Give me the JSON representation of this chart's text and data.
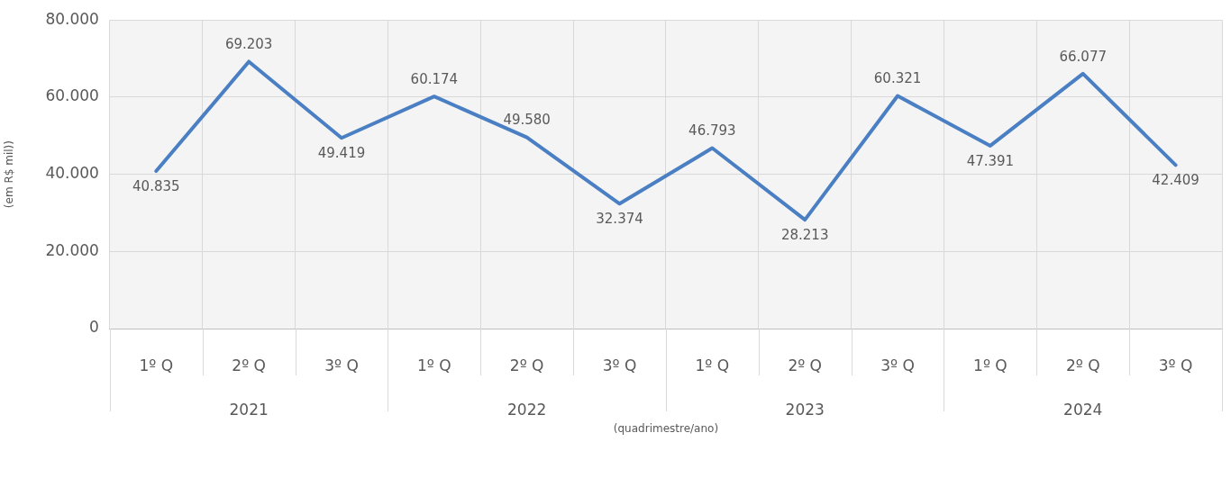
{
  "chart_data": {
    "type": "line",
    "categories": [
      "1º Q",
      "2º Q",
      "3º Q",
      "1º Q",
      "2º Q",
      "3º Q",
      "1º Q",
      "2º Q",
      "3º Q",
      "1º Q",
      "2º Q",
      "3º Q"
    ],
    "series": [
      {
        "color": "#4a7fc4",
        "values": [
          40835,
          69203,
          49419,
          60174,
          49580,
          32374,
          46793,
          28213,
          60321,
          47391,
          66077,
          42409
        ],
        "value_labels": [
          "40.835",
          "69.203",
          "49.419",
          "60.174",
          "49.580",
          "32.374",
          "46.793",
          "28.213",
          "60.321",
          "47.391",
          "66.077",
          "42.409"
        ]
      }
    ],
    "ylim": [
      0,
      80000
    ],
    "yticks": [
      {
        "value": 0,
        "label": "0"
      },
      {
        "value": 20000,
        "label": "20.000"
      },
      {
        "value": 40000,
        "label": "40.000"
      },
      {
        "value": 60000,
        "label": "60.000"
      },
      {
        "value": 80000,
        "label": "80.000"
      }
    ],
    "ylabel": "(em R$ mil))",
    "xlabel": "(quadrimestre/ano)",
    "annotations": [
      "2021",
      "2022",
      "2023",
      "2024"
    ],
    "grid": true,
    "legend": false,
    "marker": "none",
    "line_style": "solid"
  }
}
